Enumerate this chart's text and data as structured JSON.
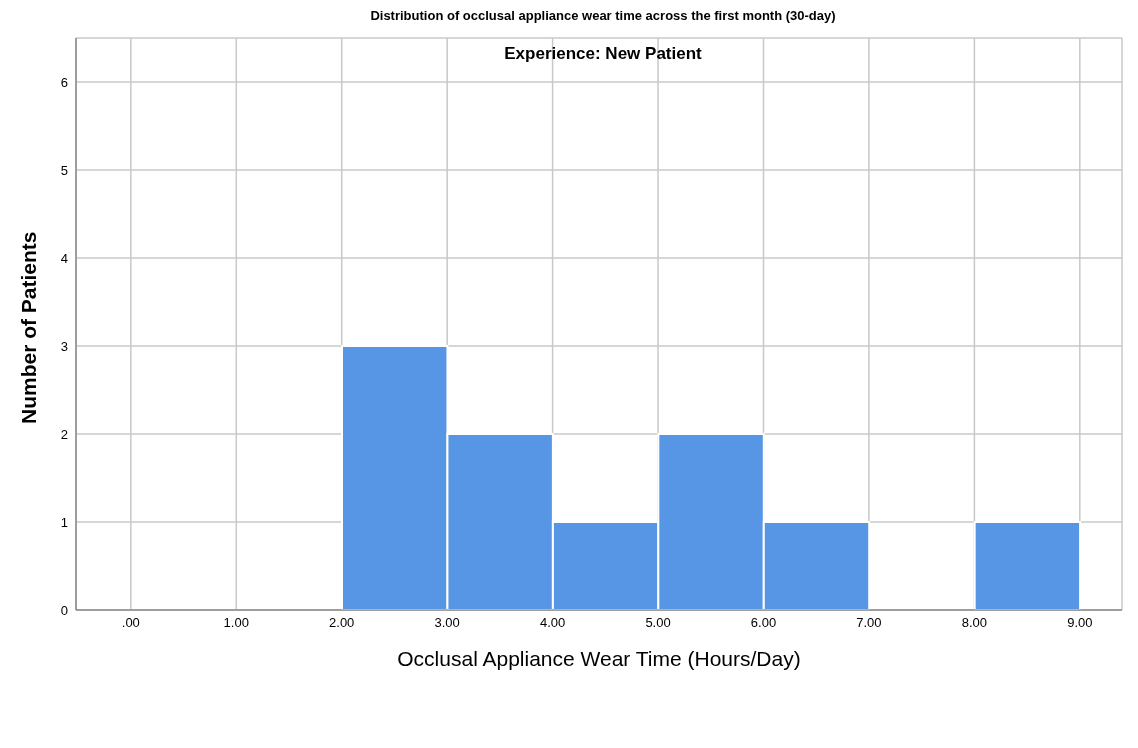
{
  "chart_data": {
    "type": "histogram",
    "title": "Distribution of occlusal appliance wear time across the first month (30-day)",
    "subtitle": "Experience: New Patient",
    "xlabel": "Occlusal Appliance Wear Time (Hours/Day)",
    "ylabel": "Number of Patients",
    "bins": [
      2,
      3,
      4,
      5,
      6,
      7,
      8,
      9
    ],
    "values": [
      3,
      2,
      1,
      2,
      1,
      0,
      1
    ],
    "color": "#5796e5",
    "xlim": [
      -0.52,
      9.4
    ],
    "ylim": [
      0,
      6.5
    ],
    "xticks": [
      {
        "value": 0,
        "label": ".00"
      },
      {
        "value": 1,
        "label": "1.00"
      },
      {
        "value": 2,
        "label": "2.00"
      },
      {
        "value": 3,
        "label": "3.00"
      },
      {
        "value": 4,
        "label": "4.00"
      },
      {
        "value": 5,
        "label": "5.00"
      },
      {
        "value": 6,
        "label": "6.00"
      },
      {
        "value": 7,
        "label": "7.00"
      },
      {
        "value": 8,
        "label": "8.00"
      },
      {
        "value": 9,
        "label": "9.00"
      }
    ],
    "yticks": [
      0,
      1,
      2,
      3,
      4,
      5,
      6
    ],
    "grid": true
  }
}
